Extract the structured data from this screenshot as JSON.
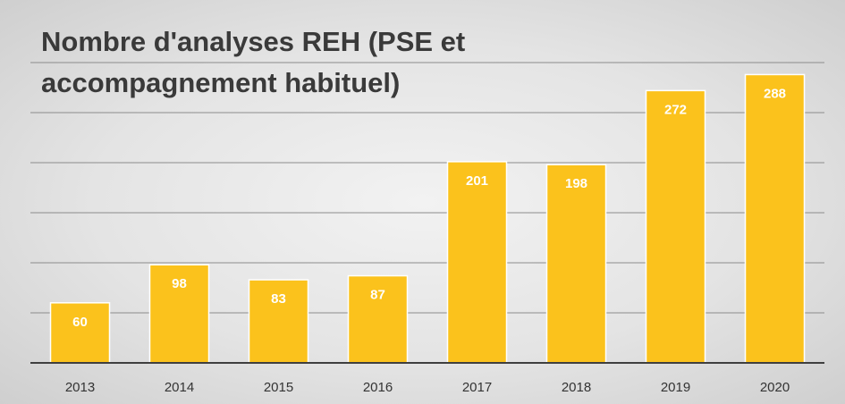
{
  "chart_data": {
    "type": "bar",
    "title_line1": "Nombre d'analyses REH (PSE et",
    "title_line2": "accompagnement habituel)",
    "categories": [
      "2013",
      "2014",
      "2015",
      "2016",
      "2017",
      "2018",
      "2019",
      "2020"
    ],
    "values": [
      60,
      98,
      83,
      87,
      201,
      198,
      272,
      288
    ],
    "data_labels": true,
    "grid": true,
    "legend": "none",
    "ylim": [
      0,
      300
    ],
    "colors": {
      "bar": "#fbc21c",
      "label": "#ffffff"
    }
  }
}
